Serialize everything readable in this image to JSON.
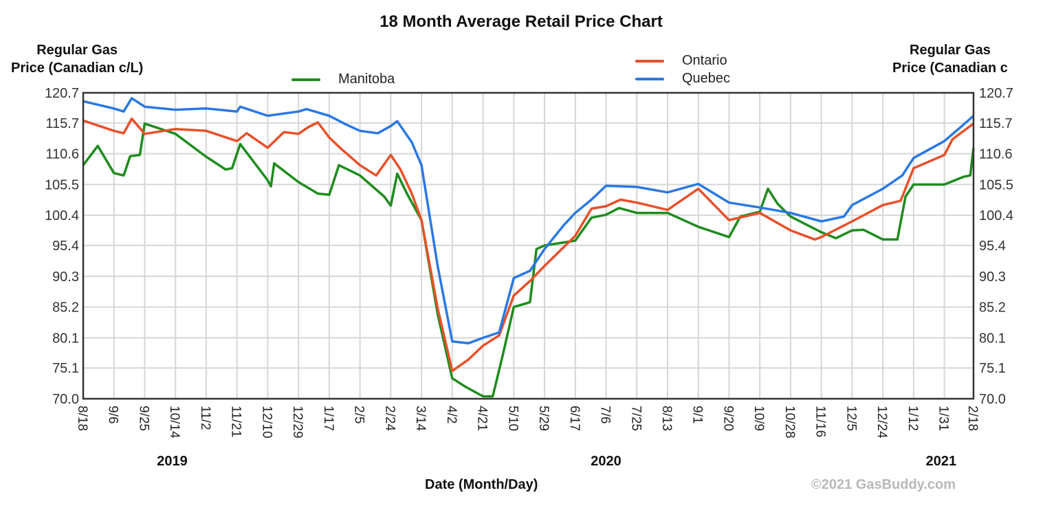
{
  "chart_data": {
    "type": "line",
    "title": "18 Month Average Retail Price Chart",
    "ylabel_left": [
      "Regular Gas",
      "Price (Canadian c/L)"
    ],
    "ylabel_right": [
      "Regular Gas",
      "Price (Canadian c"
    ],
    "xlabel": "Date (Month/Day)",
    "credit": "©2021 GasBuddy.com",
    "ylim": [
      70.0,
      120.7
    ],
    "yticks": [
      "70.0",
      "75.1",
      "80.1",
      "85.2",
      "90.3",
      "95.4",
      "100.4",
      "105.5",
      "110.6",
      "115.7",
      "120.7"
    ],
    "grid": true,
    "xticks": [
      {
        "date": "2019-08-18",
        "label": "8/18"
      },
      {
        "date": "2019-09-06",
        "label": "9/6"
      },
      {
        "date": "2019-09-25",
        "label": "9/25"
      },
      {
        "date": "2019-10-14",
        "label": "10/14"
      },
      {
        "date": "2019-11-02",
        "label": "11/2"
      },
      {
        "date": "2019-11-21",
        "label": "11/21"
      },
      {
        "date": "2019-12-10",
        "label": "12/10"
      },
      {
        "date": "2019-12-29",
        "label": "12/29"
      },
      {
        "date": "2020-01-17",
        "label": "1/17"
      },
      {
        "date": "2020-02-05",
        "label": "2/5"
      },
      {
        "date": "2020-02-24",
        "label": "2/24"
      },
      {
        "date": "2020-03-14",
        "label": "3/14"
      },
      {
        "date": "2020-04-02",
        "label": "4/2"
      },
      {
        "date": "2020-04-21",
        "label": "4/21"
      },
      {
        "date": "2020-05-10",
        "label": "5/10"
      },
      {
        "date": "2020-05-29",
        "label": "5/29"
      },
      {
        "date": "2020-06-17",
        "label": "6/17"
      },
      {
        "date": "2020-07-06",
        "label": "7/6"
      },
      {
        "date": "2020-07-25",
        "label": "7/25"
      },
      {
        "date": "2020-08-13",
        "label": "8/13"
      },
      {
        "date": "2020-09-01",
        "label": "9/1"
      },
      {
        "date": "2020-09-20",
        "label": "9/20"
      },
      {
        "date": "2020-10-09",
        "label": "10/9"
      },
      {
        "date": "2020-10-28",
        "label": "10/28"
      },
      {
        "date": "2020-11-16",
        "label": "11/16"
      },
      {
        "date": "2020-12-05",
        "label": "12/5"
      },
      {
        "date": "2020-12-24",
        "label": "12/24"
      },
      {
        "date": "2021-01-12",
        "label": "1/12"
      },
      {
        "date": "2021-01-31",
        "label": "1/31"
      },
      {
        "date": "2021-02-18",
        "label": "2/18"
      }
    ],
    "year_labels": [
      {
        "date": "2019-10-12",
        "label": "2019"
      },
      {
        "date": "2020-07-06",
        "label": "2020"
      },
      {
        "date": "2021-01-29",
        "label": "2021"
      }
    ],
    "legend": "top-center",
    "series": [
      {
        "name": "Manitoba",
        "color": "#1e8c1e",
        "points": [
          [
            "2019-08-18",
            108.7
          ],
          [
            "2019-08-27",
            111.9
          ],
          [
            "2019-09-06",
            107.4
          ],
          [
            "2019-09-12",
            107.0
          ],
          [
            "2019-09-16",
            110.2
          ],
          [
            "2019-09-22",
            110.4
          ],
          [
            "2019-09-25",
            115.6
          ],
          [
            "2019-10-14",
            113.9
          ],
          [
            "2019-11-02",
            110.1
          ],
          [
            "2019-11-14",
            108.0
          ],
          [
            "2019-11-18",
            108.2
          ],
          [
            "2019-11-23",
            112.2
          ],
          [
            "2019-12-10",
            106.2
          ],
          [
            "2019-12-12",
            105.2
          ],
          [
            "2019-12-14",
            109.0
          ],
          [
            "2019-12-29",
            105.9
          ],
          [
            "2020-01-10",
            104.0
          ],
          [
            "2020-01-17",
            103.8
          ],
          [
            "2020-01-23",
            108.7
          ],
          [
            "2020-02-05",
            107.0
          ],
          [
            "2020-02-20",
            103.5
          ],
          [
            "2020-02-24",
            102.0
          ],
          [
            "2020-02-28",
            107.3
          ],
          [
            "2020-03-05",
            104.0
          ],
          [
            "2020-03-14",
            99.6
          ],
          [
            "2020-03-24",
            84.0
          ],
          [
            "2020-04-02",
            73.4
          ],
          [
            "2020-04-10",
            72.0
          ],
          [
            "2020-04-21",
            70.4
          ],
          [
            "2020-04-27",
            70.4
          ],
          [
            "2020-05-03",
            77.0
          ],
          [
            "2020-05-10",
            85.2
          ],
          [
            "2020-05-20",
            86.0
          ],
          [
            "2020-05-24",
            94.8
          ],
          [
            "2020-05-29",
            95.4
          ],
          [
            "2020-06-17",
            96.2
          ],
          [
            "2020-06-27",
            100.0
          ],
          [
            "2020-07-06",
            100.5
          ],
          [
            "2020-07-14",
            101.6
          ],
          [
            "2020-07-25",
            100.8
          ],
          [
            "2020-08-13",
            100.8
          ],
          [
            "2020-09-01",
            98.5
          ],
          [
            "2020-09-20",
            96.8
          ],
          [
            "2020-09-27",
            100.2
          ],
          [
            "2020-10-09",
            101.0
          ],
          [
            "2020-10-14",
            104.8
          ],
          [
            "2020-10-20",
            102.3
          ],
          [
            "2020-10-28",
            100.2
          ],
          [
            "2020-11-16",
            97.6
          ],
          [
            "2020-11-25",
            96.6
          ],
          [
            "2020-12-05",
            97.9
          ],
          [
            "2020-12-12",
            98.0
          ],
          [
            "2020-12-24",
            96.4
          ],
          [
            "2021-01-02",
            96.4
          ],
          [
            "2021-01-07",
            103.5
          ],
          [
            "2021-01-12",
            105.5
          ],
          [
            "2021-01-31",
            105.5
          ],
          [
            "2021-02-12",
            106.8
          ],
          [
            "2021-02-16",
            107.0
          ],
          [
            "2021-02-18",
            111.6
          ]
        ]
      },
      {
        "name": "Ontario",
        "color": "#e8502a",
        "points": [
          [
            "2019-08-18",
            116.1
          ],
          [
            "2019-09-06",
            114.4
          ],
          [
            "2019-09-12",
            114.0
          ],
          [
            "2019-09-17",
            116.4
          ],
          [
            "2019-09-25",
            113.9
          ],
          [
            "2019-10-14",
            114.7
          ],
          [
            "2019-11-02",
            114.4
          ],
          [
            "2019-11-21",
            112.7
          ],
          [
            "2019-11-27",
            114.0
          ],
          [
            "2019-12-10",
            111.6
          ],
          [
            "2019-12-20",
            114.2
          ],
          [
            "2019-12-29",
            113.9
          ],
          [
            "2020-01-04",
            115.0
          ],
          [
            "2020-01-10",
            115.8
          ],
          [
            "2020-01-17",
            113.3
          ],
          [
            "2020-01-24",
            111.5
          ],
          [
            "2020-02-05",
            108.7
          ],
          [
            "2020-02-15",
            107.0
          ],
          [
            "2020-02-24",
            110.4
          ],
          [
            "2020-03-01",
            108.0
          ],
          [
            "2020-03-08",
            104.0
          ],
          [
            "2020-03-14",
            99.6
          ],
          [
            "2020-03-24",
            85.0
          ],
          [
            "2020-04-02",
            74.6
          ],
          [
            "2020-04-12",
            76.5
          ],
          [
            "2020-04-21",
            78.8
          ],
          [
            "2020-05-01",
            80.5
          ],
          [
            "2020-05-10",
            87.1
          ],
          [
            "2020-05-20",
            89.5
          ],
          [
            "2020-05-29",
            92.0
          ],
          [
            "2020-06-17",
            97.0
          ],
          [
            "2020-06-27",
            101.5
          ],
          [
            "2020-07-06",
            101.9
          ],
          [
            "2020-07-15",
            103.0
          ],
          [
            "2020-07-25",
            102.5
          ],
          [
            "2020-08-13",
            101.3
          ],
          [
            "2020-09-01",
            104.8
          ],
          [
            "2020-09-20",
            99.6
          ],
          [
            "2020-10-09",
            100.8
          ],
          [
            "2020-10-28",
            97.9
          ],
          [
            "2020-11-12",
            96.4
          ],
          [
            "2020-11-16",
            96.8
          ],
          [
            "2020-12-05",
            99.4
          ],
          [
            "2020-12-24",
            102.1
          ],
          [
            "2021-01-04",
            102.8
          ],
          [
            "2021-01-12",
            108.2
          ],
          [
            "2021-01-31",
            110.4
          ],
          [
            "2021-02-05",
            113.0
          ],
          [
            "2021-02-18",
            115.6
          ]
        ]
      },
      {
        "name": "Quebec",
        "color": "#2a78e4",
        "points": [
          [
            "2019-08-18",
            119.3
          ],
          [
            "2019-09-06",
            118.1
          ],
          [
            "2019-09-12",
            117.6
          ],
          [
            "2019-09-17",
            119.8
          ],
          [
            "2019-09-25",
            118.4
          ],
          [
            "2019-10-14",
            117.9
          ],
          [
            "2019-11-02",
            118.1
          ],
          [
            "2019-11-21",
            117.6
          ],
          [
            "2019-11-23",
            118.4
          ],
          [
            "2019-12-10",
            116.9
          ],
          [
            "2019-12-29",
            117.6
          ],
          [
            "2020-01-03",
            118.0
          ],
          [
            "2020-01-17",
            116.9
          ],
          [
            "2020-01-27",
            115.5
          ],
          [
            "2020-02-05",
            114.4
          ],
          [
            "2020-02-16",
            114.0
          ],
          [
            "2020-02-24",
            115.2
          ],
          [
            "2020-02-28",
            116.0
          ],
          [
            "2020-03-08",
            112.5
          ],
          [
            "2020-03-14",
            108.7
          ],
          [
            "2020-03-24",
            92.0
          ],
          [
            "2020-04-02",
            79.5
          ],
          [
            "2020-04-12",
            79.2
          ],
          [
            "2020-04-21",
            80.1
          ],
          [
            "2020-05-01",
            81.0
          ],
          [
            "2020-05-10",
            90.0
          ],
          [
            "2020-05-20",
            91.2
          ],
          [
            "2020-05-29",
            94.8
          ],
          [
            "2020-06-10",
            98.8
          ],
          [
            "2020-06-17",
            100.8
          ],
          [
            "2020-06-27",
            103.0
          ],
          [
            "2020-07-06",
            105.3
          ],
          [
            "2020-07-25",
            105.1
          ],
          [
            "2020-08-13",
            104.2
          ],
          [
            "2020-09-01",
            105.6
          ],
          [
            "2020-09-20",
            102.5
          ],
          [
            "2020-10-09",
            101.7
          ],
          [
            "2020-10-28",
            100.8
          ],
          [
            "2020-11-16",
            99.4
          ],
          [
            "2020-11-30",
            100.2
          ],
          [
            "2020-12-05",
            102.1
          ],
          [
            "2020-12-24",
            104.8
          ],
          [
            "2021-01-05",
            107.0
          ],
          [
            "2021-01-12",
            109.9
          ],
          [
            "2021-01-31",
            112.7
          ],
          [
            "2021-02-10",
            115.0
          ],
          [
            "2021-02-18",
            116.9
          ]
        ]
      }
    ]
  }
}
